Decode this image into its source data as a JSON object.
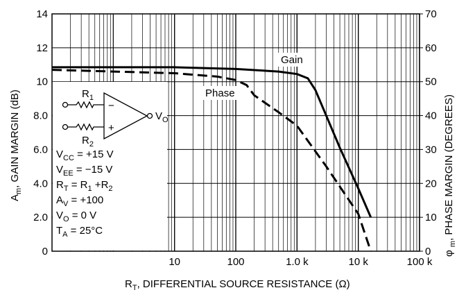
{
  "chart_data": {
    "type": "line",
    "xlabel": [
      "R",
      "T",
      ", DIFFERENTIAL SOURCE RESISTANCE (Ω)"
    ],
    "ylabel": [
      "A",
      "m",
      ", GAIN MARGIN (dB)"
    ],
    "y2label": [
      "φ ",
      "m",
      ", PHASE MARGIN (DEGREES)"
    ],
    "xscale": "log",
    "xlim": [
      0.1,
      100000
    ],
    "xticks": [
      10,
      100,
      {
        "value": 1000,
        "label": "1.0 k"
      },
      {
        "value": 10000,
        "label": "10 k"
      },
      {
        "value": 100000,
        "label": "100 k"
      }
    ],
    "ylim": [
      0,
      14
    ],
    "yticks": [
      0,
      {
        "value": 2,
        "label": "2.0"
      },
      {
        "value": 4,
        "label": "4.0"
      },
      {
        "value": 6,
        "label": "6.0"
      },
      {
        "value": 8,
        "label": "8.0"
      },
      10,
      12,
      14
    ],
    "y2lim": [
      0,
      70
    ],
    "y2ticks": [
      0,
      10,
      20,
      30,
      40,
      50,
      60,
      70
    ],
    "grid": true,
    "series": [
      {
        "name": "Gain",
        "color": "#000000",
        "style": "solid",
        "x": [
          0.1,
          1,
          10,
          100,
          500,
          1000,
          1500,
          2000,
          5000,
          10000,
          16000
        ],
        "values": [
          10.85,
          10.85,
          10.85,
          10.75,
          10.6,
          10.45,
          10.2,
          9.5,
          6.1,
          3.7,
          2.0
        ]
      },
      {
        "name": "Phase",
        "color": "#000000",
        "style": "dashed",
        "axis": "y2",
        "x": [
          0.1,
          1,
          10,
          50,
          100,
          150,
          200,
          500,
          1000,
          3000,
          10000,
          16000
        ],
        "values": [
          53.5,
          53,
          52.5,
          51.5,
          50.5,
          49,
          46,
          41,
          37,
          25,
          11,
          0
        ]
      }
    ],
    "schematic": {
      "r1": [
        "R",
        "1"
      ],
      "r2": [
        "R",
        "2"
      ],
      "minus": "−",
      "plus": "+",
      "vo": [
        "V",
        "O"
      ]
    },
    "conditions": [
      [
        "V",
        "CC",
        " = +15 V"
      ],
      [
        "V",
        "EE",
        " = −15 V"
      ],
      [
        "R",
        "T",
        " = R",
        "1",
        " +R",
        "2"
      ],
      [
        "A",
        "V",
        " = +100"
      ],
      [
        "V",
        "O",
        " = 0 V"
      ],
      [
        "T",
        "A",
        " = 25°C"
      ]
    ]
  }
}
